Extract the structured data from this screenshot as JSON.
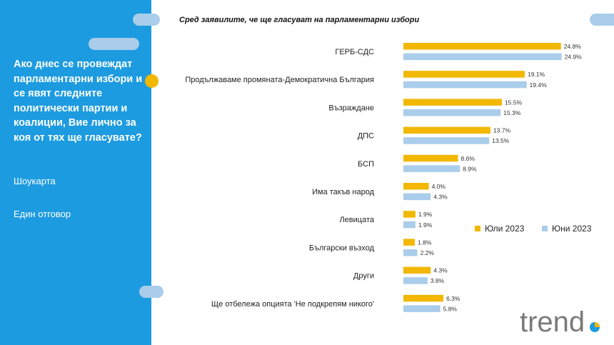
{
  "sidebar": {
    "question": "Ако днес се провеждат парламентарни избори и се явят следните политически партии и коалиции, Вие лично за коя от тях ще гласувате?",
    "method": "Шоукарта",
    "answer_type": "Един отговор"
  },
  "logo_text": "trend",
  "chart_data": {
    "type": "bar",
    "orientation": "horizontal",
    "title": "Сред заявилите, че ще гласуват на парламентарни избори",
    "categories": [
      "ГЕРБ-СДС",
      "Продължаваме промяната-Демократична България",
      "Възраждане",
      "ДПС",
      "БСП",
      "Има такъв народ",
      "Левицата",
      "Български възход",
      "Други",
      "Ще отбележа опцията 'Не подкрепям никого'"
    ],
    "series": [
      {
        "name": "Юли 2023",
        "color": "#f2b800",
        "values": [
          24.8,
          19.1,
          15.5,
          13.7,
          8.6,
          4.0,
          1.9,
          1.8,
          4.3,
          6.3
        ]
      },
      {
        "name": "Юни 2023",
        "color": "#a9cdea",
        "values": [
          24.9,
          19.4,
          15.3,
          13.5,
          8.9,
          4.3,
          1.9,
          2.2,
          3.8,
          5.8
        ]
      }
    ],
    "value_suffix": "%",
    "legend_position": "right",
    "grid": false
  }
}
